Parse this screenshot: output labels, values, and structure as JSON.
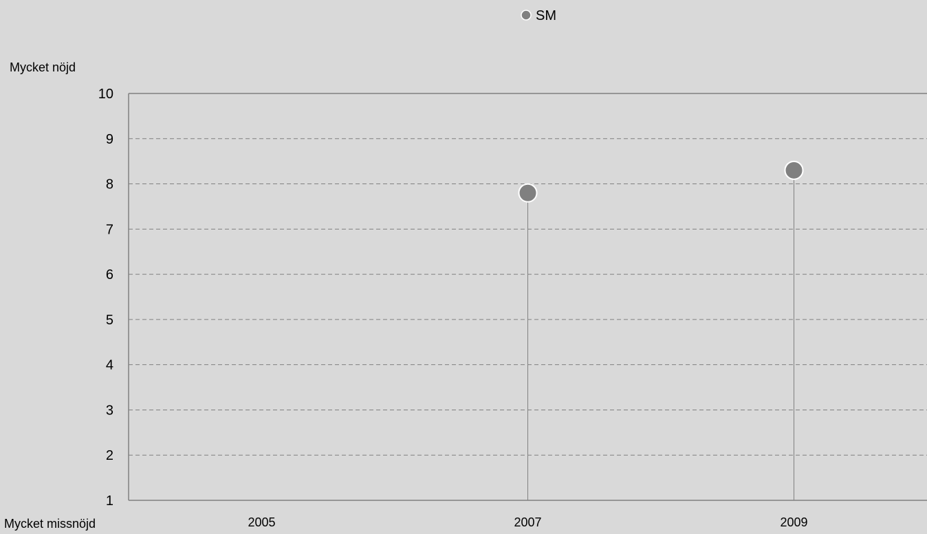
{
  "chart_data": {
    "type": "scatter",
    "categories": [
      "2005",
      "2007",
      "2009"
    ],
    "series": [
      {
        "name": "SM",
        "values": [
          null,
          7.8,
          8.3
        ]
      }
    ],
    "y_top_label": "Mycket nöjd",
    "y_bottom_label": "Mycket missnöjd",
    "ylim": [
      1,
      10
    ],
    "yticks": [
      "1",
      "2",
      "3",
      "4",
      "5",
      "6",
      "7",
      "8",
      "9",
      "10"
    ],
    "grid": "horizontal dashed",
    "legend_position": "top-center",
    "drop_lines": true
  },
  "colors": {
    "background": "#d9d9d9",
    "marker": "#808080",
    "marker_stroke": "#ffffff",
    "axis": "#808080",
    "grid": "#808080",
    "drop_line": "#808080"
  }
}
